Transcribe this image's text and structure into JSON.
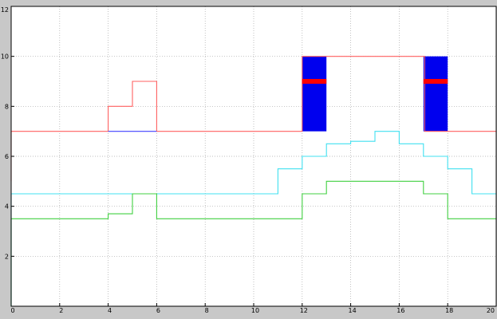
{
  "chart_data": {
    "type": "line",
    "title": "",
    "xlabel": "",
    "ylabel": "",
    "xlim": [
      0,
      20
    ],
    "ylim": [
      0,
      12
    ],
    "grid": true,
    "x_ticks": [
      0,
      2,
      4,
      6,
      8,
      10,
      12,
      14,
      16,
      18,
      20
    ],
    "y_ticks": [
      2,
      4,
      6,
      8,
      10,
      12
    ],
    "series": [
      {
        "color": "#ff6060",
        "x": [
          0,
          0,
          4,
          4,
          5,
          5,
          6,
          6,
          12,
          12,
          17.05,
          17.05,
          18,
          18,
          20
        ],
        "y": [
          5,
          7,
          7,
          8,
          8,
          9,
          9,
          7,
          7,
          10,
          10,
          7,
          7,
          7,
          7
        ]
      },
      {
        "color": "#40e0f0",
        "x": [
          0,
          0,
          11,
          11,
          12,
          12,
          13,
          13,
          14,
          14,
          15,
          15,
          16,
          16,
          17,
          17,
          18,
          18,
          19,
          19,
          20
        ],
        "y": [
          0,
          4.5,
          4.5,
          5.5,
          5.5,
          6,
          6,
          6.5,
          6.5,
          6.6,
          6.6,
          7,
          7,
          6.5,
          6.5,
          6,
          6,
          5.5,
          5.5,
          4.5,
          4.5
        ]
      },
      {
        "color": "#40d040",
        "x": [
          0,
          0,
          4,
          4,
          5,
          5,
          6,
          6,
          12,
          12,
          13,
          13,
          17,
          17,
          18,
          18,
          20
        ],
        "y": [
          0,
          3.5,
          3.5,
          3.7,
          3.7,
          4.5,
          4.5,
          3.5,
          3.5,
          4.5,
          4.5,
          5,
          5,
          4.5,
          4.5,
          3.5,
          3.5
        ]
      },
      {
        "color": "#4040ff",
        "x": [
          4,
          6
        ],
        "y": [
          7,
          7
        ]
      }
    ],
    "blocks": [
      {
        "x0": 12,
        "x1": 13,
        "y0": 7,
        "y1": 10,
        "color": "#0000ee"
      },
      {
        "x0": 17,
        "x1": 18,
        "y0": 7,
        "y1": 10,
        "color": "#0000ee"
      }
    ],
    "markers": [
      {
        "x0": 12,
        "x1": 13,
        "y": 9,
        "color": "#ff0000"
      },
      {
        "x0": 17,
        "x1": 18,
        "y": 9,
        "color": "#ff0000"
      }
    ]
  },
  "colors": {
    "frame_background": "#c8c8c8",
    "plot_background": "#ffffff",
    "axis": "#000000"
  }
}
